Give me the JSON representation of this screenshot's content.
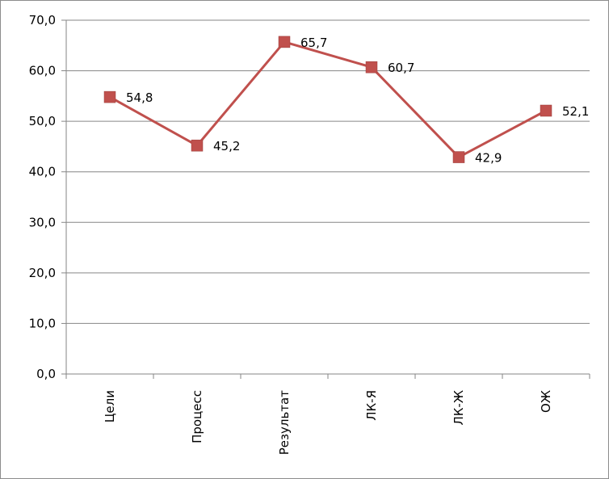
{
  "chart_data": {
    "type": "line",
    "title": "",
    "xlabel": "",
    "ylabel": "",
    "categories": [
      "Цели",
      "Процесс",
      "Результат",
      "ЛК-Я",
      "ЛК-Ж",
      "ОЖ"
    ],
    "series": [
      {
        "values": [
          54.8,
          45.2,
          65.7,
          60.7,
          42.9,
          52.1
        ],
        "data_labels": [
          "54,8",
          "45,2",
          "65,7",
          "60,7",
          "42,9",
          "52,1"
        ],
        "color": "#c0504d",
        "marker": "square"
      }
    ],
    "ylim": [
      0,
      70
    ],
    "yticks": [
      0,
      10,
      20,
      30,
      40,
      50,
      60,
      70
    ],
    "ytick_labels": [
      "0,0",
      "10,0",
      "20,0",
      "30,0",
      "40,0",
      "50,0",
      "60,0",
      "70,0"
    ],
    "grid": "horizontal",
    "legend": "none",
    "gridline_color": "#868686",
    "axis_color": "#868686"
  }
}
